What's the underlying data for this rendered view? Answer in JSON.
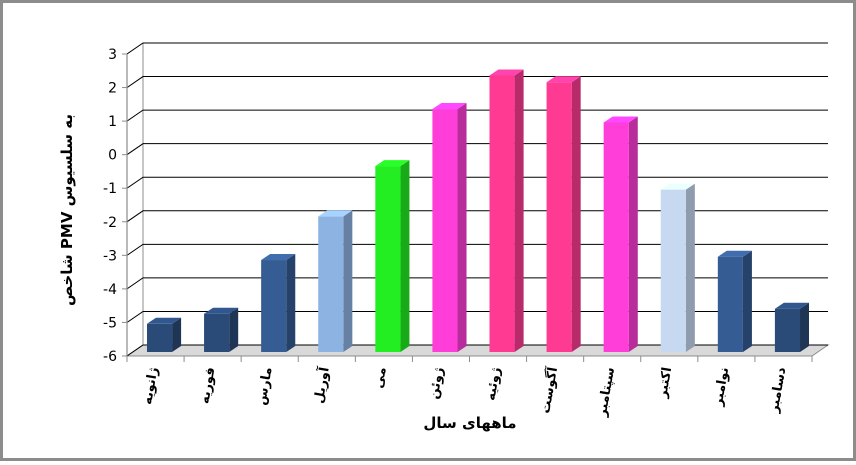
{
  "chart_data": {
    "type": "bar",
    "style": "3d-column",
    "categories": [
      "ژانویه",
      "فوریه",
      "مارس",
      "آوریل",
      "می",
      "ژوئن",
      "ژوئیه",
      "آگوست",
      "سپتامبر",
      "اکتبر",
      "نوامبر",
      "دسامبر"
    ],
    "series": [
      {
        "values": [
          -5.1,
          -4.8,
          -3.2,
          -1.9,
          -0.4,
          1.3,
          2.3,
          2.1,
          0.9,
          -1.1,
          -3.1,
          -4.65
        ]
      }
    ],
    "bar_colors": [
      "#2a4a78",
      "#2a4a78",
      "#355c93",
      "#8db3e2",
      "#22ee22",
      "#ff3dd8",
      "#ff3a93",
      "#ff3a93",
      "#ff3dd8",
      "#c6d9f1",
      "#355c93",
      "#2a4a78"
    ],
    "xlabel": "ماههای سال",
    "ylabel": "شاخص PMV به سلسیوس",
    "ylim": [
      -6,
      3
    ],
    "yticks": [
      3,
      2,
      1,
      0,
      -1,
      -2,
      -3,
      -4,
      -5,
      -6
    ],
    "ytick_labels": [
      "3",
      "2",
      "1",
      "0",
      "-1",
      "-2",
      "-3",
      "-4",
      "-5",
      "-6"
    ],
    "grid": true,
    "legend": "none"
  },
  "colors": {
    "frame": "#8c8c8c",
    "gridline": "#000000",
    "wall": "#ffffff",
    "floor": "#d9d9d9"
  }
}
